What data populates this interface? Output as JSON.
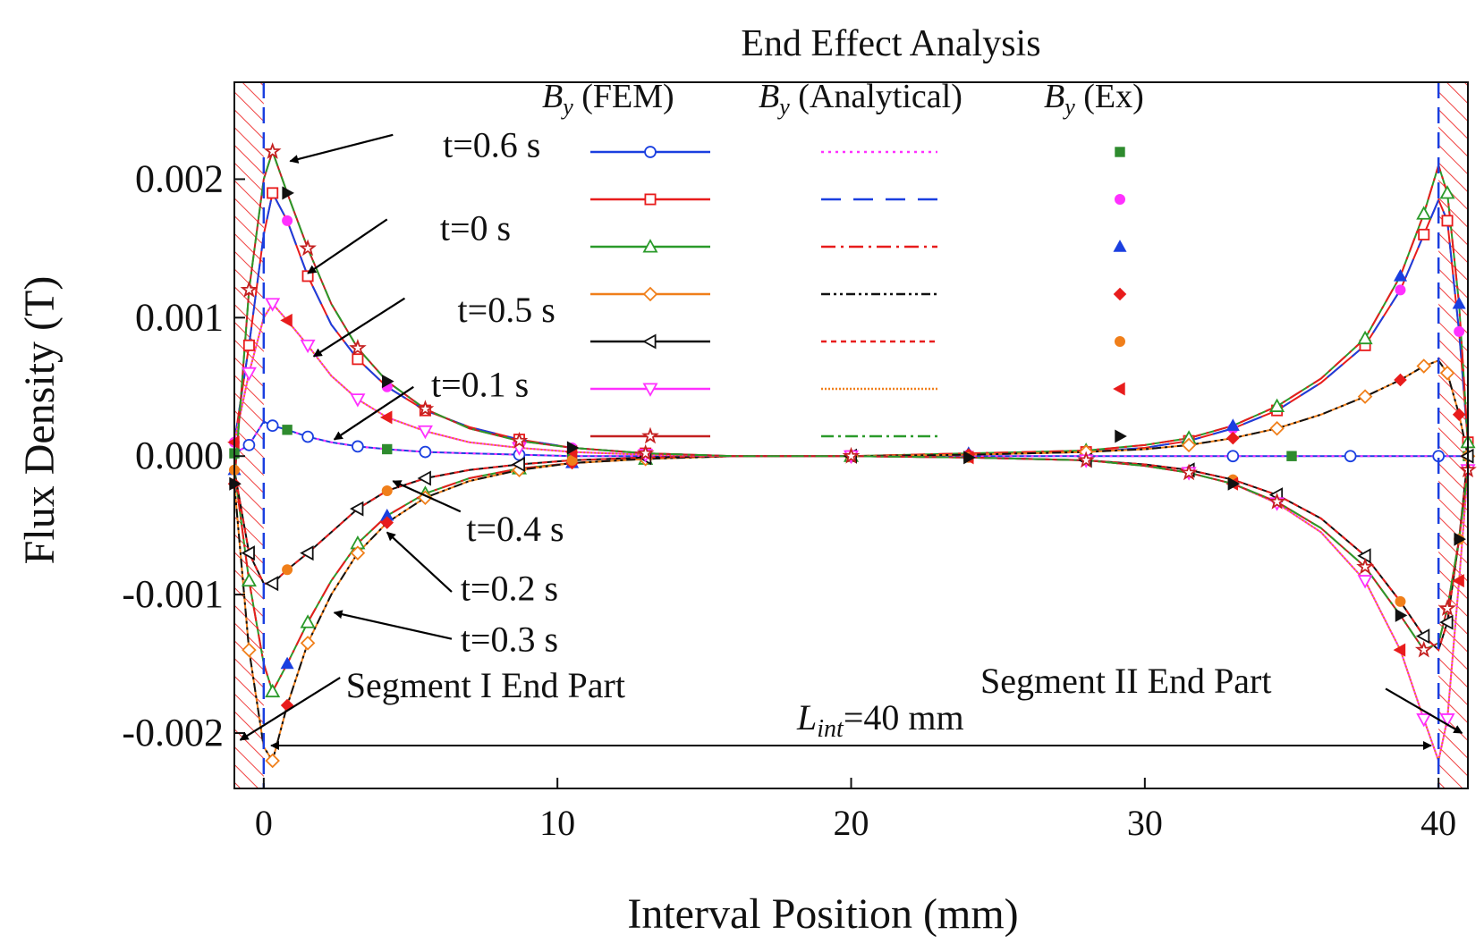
{
  "chart_data": {
    "type": "line",
    "title": "End Effect Analysis",
    "xlabel": "Interval Position (mm)",
    "ylabel": "Flux Density (T)",
    "xlim": [
      -1,
      41
    ],
    "ylim": [
      -0.0024,
      0.0027
    ],
    "xticks": [
      "0",
      "10",
      "20",
      "30",
      "40"
    ],
    "yticks": [
      "0.002",
      "0.001",
      "0.000",
      "-0.001",
      "-0.002"
    ],
    "legend": {
      "headers": [
        {
          "b": "B",
          "sub": "y",
          "suffix": " (FEM)"
        },
        {
          "b": "B",
          "sub": "y",
          "suffix": " (Analytical)"
        },
        {
          "b": "B",
          "sub": "y",
          "suffix": " (Ex)"
        }
      ]
    },
    "series": [
      {
        "name": "t=0 s",
        "fem_color": "#1a3fe0",
        "fem_marker": "circle",
        "an_color": "#ff30ff",
        "an_dash": "3,5",
        "ex_color": "#2e8b2e",
        "ex_marker": "square",
        "x": [
          -1,
          -0.5,
          0,
          0.3,
          0.8,
          1.5,
          2.3,
          3.2,
          4.2,
          5.5,
          7,
          8.7,
          10.5,
          13,
          16,
          20,
          24,
          28,
          31,
          33,
          35,
          37,
          39,
          40,
          41
        ],
        "y": [
          2e-05,
          8e-05,
          0.00025,
          0.00022,
          0.00019,
          0.00014,
          0.0001,
          7e-05,
          5e-05,
          3e-05,
          2e-05,
          1e-05,
          0,
          0,
          0,
          0,
          0,
          0,
          0,
          0,
          0,
          0,
          0,
          0,
          0
        ]
      },
      {
        "name": "t=0.1 s",
        "fem_color": "#e81c1c",
        "fem_marker": "square",
        "an_color": "#1a3fe0",
        "an_dash": "22,14",
        "ex_color": "#ff30ff",
        "ex_marker": "circle",
        "x": [
          -1,
          -0.5,
          0,
          0.3,
          0.8,
          1.5,
          2.3,
          3.2,
          4.2,
          5.5,
          7,
          8.7,
          10.5,
          13,
          16,
          20,
          24,
          28,
          30,
          31.5,
          33,
          34.5,
          36,
          37.5,
          38.7,
          39.5,
          40,
          40.3,
          40.7,
          41
        ],
        "y": [
          0.0001,
          0.0008,
          0.0016,
          0.0019,
          0.0017,
          0.0013,
          0.00095,
          0.0007,
          0.0005,
          0.00033,
          0.00021,
          0.00012,
          6e-05,
          2e-05,
          0,
          0,
          1e-05,
          3e-05,
          6e-05,
          0.00011,
          0.0002,
          0.00033,
          0.00053,
          0.0008,
          0.0012,
          0.0016,
          0.00185,
          0.0017,
          0.0009,
          0.0001
        ]
      },
      {
        "name": "t=0.2 s",
        "fem_color": "#2a9a2a",
        "fem_marker": "triangle-up",
        "an_color": "#e81c1c",
        "an_dash": "16,6,3,6",
        "ex_color": "#1a3fe0",
        "ex_marker": "triangle-up",
        "x": [
          -1,
          -0.5,
          0,
          0.3,
          0.8,
          1.5,
          2.3,
          3.2,
          4.2,
          5.5,
          7,
          8.7,
          10.5,
          13,
          16,
          20,
          24,
          28,
          30,
          31.5,
          33,
          34.5,
          36,
          37.5,
          38.7,
          39.5,
          40,
          40.3,
          40.7,
          41
        ],
        "y": [
          -0.0001,
          -0.0009,
          -0.0015,
          -0.0017,
          -0.0015,
          -0.0012,
          -0.0009,
          -0.00063,
          -0.00043,
          -0.00027,
          -0.00016,
          -9e-05,
          -5e-05,
          -2e-05,
          0,
          0,
          2e-05,
          4e-05,
          8e-05,
          0.00013,
          0.00022,
          0.00036,
          0.00056,
          0.00085,
          0.0013,
          0.00175,
          0.0021,
          0.0019,
          0.0011,
          0.0001
        ]
      },
      {
        "name": "t=0.3 s",
        "fem_color": "#f07f1a",
        "fem_marker": "diamond",
        "an_color": "#111111",
        "an_dash": "10,4,3,4,3,4",
        "ex_color": "#e81c1c",
        "ex_marker": "diamond",
        "x": [
          -1,
          -0.5,
          0,
          0.3,
          0.8,
          1.5,
          2.3,
          3.2,
          4.2,
          5.5,
          7,
          8.7,
          10.5,
          13,
          16,
          20,
          24,
          28,
          30,
          31.5,
          33,
          34.5,
          36,
          37.5,
          38.7,
          39.5,
          40,
          40.3,
          40.7,
          41
        ],
        "y": [
          -0.0002,
          -0.0014,
          -0.0021,
          -0.0022,
          -0.0018,
          -0.00135,
          -0.001,
          -0.0007,
          -0.00048,
          -0.0003,
          -0.00018,
          -0.0001,
          -5e-05,
          -2e-05,
          0,
          0,
          1e-05,
          3e-05,
          5e-05,
          8e-05,
          0.00013,
          0.0002,
          0.0003,
          0.00043,
          0.00055,
          0.00065,
          0.00069,
          0.0006,
          0.0003,
          0
        ]
      },
      {
        "name": "t=0.4 s",
        "fem_color": "#111111",
        "fem_marker": "triangle-left",
        "an_color": "#e81c1c",
        "an_dash": "6,5",
        "ex_color": "#f07f1a",
        "ex_marker": "circle",
        "x": [
          -1,
          -0.5,
          0,
          0.3,
          0.8,
          1.5,
          2.3,
          3.2,
          4.2,
          5.5,
          7,
          8.7,
          10.5,
          13,
          16,
          20,
          24,
          28,
          30,
          31.5,
          33,
          34.5,
          36,
          37.5,
          38.7,
          39.5,
          40,
          40.3,
          40.7,
          41
        ],
        "y": [
          -0.0001,
          -0.0007,
          -0.00092,
          -0.00092,
          -0.00082,
          -0.0007,
          -0.00055,
          -0.00038,
          -0.00025,
          -0.00016,
          -0.0001,
          -6e-05,
          -3e-05,
          -1e-05,
          0,
          0,
          -1e-05,
          -3e-05,
          -6e-05,
          -0.0001,
          -0.00017,
          -0.00028,
          -0.00045,
          -0.00072,
          -0.00105,
          -0.0013,
          -0.0014,
          -0.0012,
          -0.0006,
          0
        ]
      },
      {
        "name": "t=0.5 s",
        "fem_color": "#ff30ff",
        "fem_marker": "triangle-down",
        "an_color": "#f07f1a",
        "an_dash": "2,2",
        "ex_color": "#e81c1c",
        "ex_marker": "triangle-left",
        "x": [
          -1,
          -0.5,
          0,
          0.3,
          0.8,
          1.5,
          2.3,
          3.2,
          4.2,
          5.5,
          7,
          8.7,
          10.5,
          13,
          16,
          20,
          24,
          28,
          30,
          31.5,
          33,
          34.5,
          36,
          37.5,
          38.7,
          39.5,
          40,
          40.3,
          40.7,
          41
        ],
        "y": [
          0.0001,
          0.0006,
          0.001,
          0.0011,
          0.00098,
          0.0008,
          0.00058,
          0.00041,
          0.00028,
          0.00018,
          0.0001,
          6e-05,
          3e-05,
          1e-05,
          0,
          0,
          -1e-05,
          -3e-05,
          -7e-05,
          -0.00012,
          -0.0002,
          -0.00034,
          -0.00055,
          -0.0009,
          -0.0014,
          -0.0019,
          -0.0022,
          -0.0019,
          -0.0009,
          -0.0001
        ]
      },
      {
        "name": "t=0.6 s",
        "fem_color": "#c42020",
        "fem_marker": "star",
        "an_color": "#2a9a2a",
        "an_dash": "14,5,3,5",
        "ex_color": "#111111",
        "ex_marker": "triangle-right",
        "x": [
          -1,
          -0.5,
          0,
          0.3,
          0.8,
          1.5,
          2.3,
          3.2,
          4.2,
          5.5,
          7,
          8.7,
          10.5,
          13,
          16,
          20,
          24,
          28,
          30,
          31.5,
          33,
          34.5,
          36,
          37.5,
          38.7,
          39.5,
          40,
          40.3,
          40.7,
          41
        ],
        "y": [
          -0.0002,
          0.0012,
          0.002,
          0.0022,
          0.0019,
          0.0015,
          0.0011,
          0.00078,
          0.00054,
          0.00034,
          0.0002,
          0.00011,
          6e-05,
          2e-05,
          0,
          0,
          -1e-05,
          -3e-05,
          -7e-05,
          -0.00012,
          -0.0002,
          -0.00033,
          -0.00052,
          -0.0008,
          -0.00115,
          -0.0014,
          -0.00135,
          -0.0011,
          -0.0006,
          -0.0001
        ]
      }
    ],
    "annotations": [
      {
        "text": "t=0.6 s",
        "x": 6.1,
        "y": 0.00225
      },
      {
        "text": "t=0 s",
        "x": 6.0,
        "y": 0.00165
      },
      {
        "text": "t=0.5 s",
        "x": 6.6,
        "y": 0.00106
      },
      {
        "text": "t=0.1 s",
        "x": 5.7,
        "y": 0.00052
      },
      {
        "text": "t=0.4 s",
        "x": 6.9,
        "y": -0.00052
      },
      {
        "text": "t=0.2 s",
        "x": 6.7,
        "y": -0.00095
      },
      {
        "text": "t=0.3 s",
        "x": 6.7,
        "y": -0.00132
      },
      {
        "text": "Segment I End Part",
        "x": 2.8,
        "y": -0.00165
      },
      {
        "text": "Segment II End Part",
        "x": 24.4,
        "y": -0.00162
      }
    ],
    "dimension_label": {
      "main": "L",
      "sub": "int",
      "suffix": "=40 mm"
    }
  }
}
